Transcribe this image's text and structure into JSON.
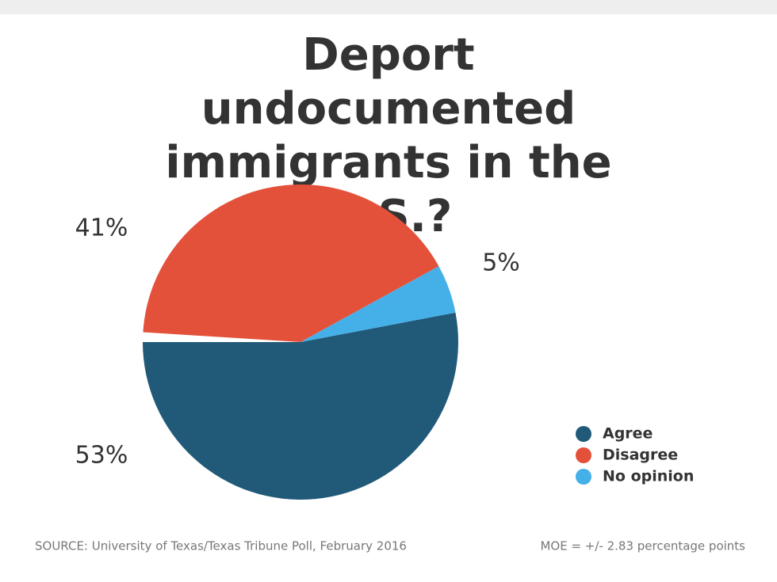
{
  "chart_data": {
    "type": "pie",
    "title": "Deport undocumented immigrants in the U.S.?",
    "categories": [
      "Agree",
      "Disagree",
      "No opinion"
    ],
    "values": [
      53,
      41,
      5
    ],
    "value_labels": [
      "53%",
      "41%",
      "5%"
    ],
    "colors": [
      "#215a78",
      "#e4513a",
      "#45b0e8"
    ],
    "slice_order": [
      0,
      2,
      1
    ],
    "source": "SOURCE: University of Texas/Texas Tribune Poll, February 2016",
    "note": "MOE = +/- 2.83 percentage points"
  }
}
